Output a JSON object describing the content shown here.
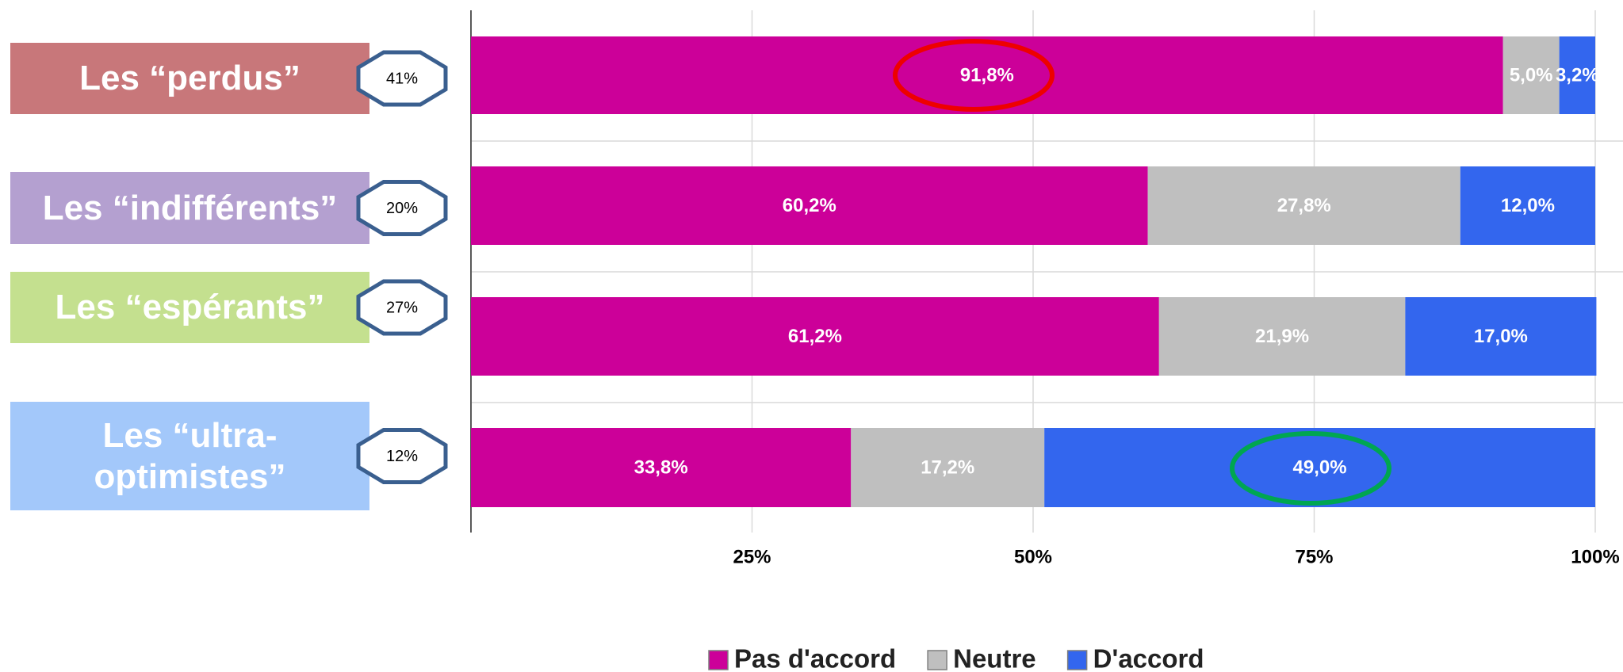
{
  "chart_data": {
    "type": "bar",
    "orientation": "horizontal",
    "stacked": true,
    "categories": [
      "Les “perdus”",
      "Les “indifférents”",
      "Les “espérants”",
      "Les “ultra-optimistes”"
    ],
    "category_colors": [
      "#c8777a",
      "#b4a0d0",
      "#c4e08f",
      "#a3c8fa"
    ],
    "shares": {
      "values": [
        41,
        20,
        27,
        12
      ],
      "value_labels": [
        "41%",
        "20%",
        "27%",
        "12%"
      ]
    },
    "series": [
      {
        "name": "Pas d'accord",
        "color": "#cc0099",
        "values": [
          91.8,
          60.2,
          61.2,
          33.8
        ],
        "value_labels": [
          "91,8%",
          "60,2%",
          "61,2%",
          "33,8%"
        ]
      },
      {
        "name": "Neutre",
        "color": "#bfbfbf",
        "values": [
          5.0,
          27.8,
          21.9,
          17.2
        ],
        "value_labels": [
          "5,0%",
          "27,8%",
          "21,9%",
          "17,2%"
        ]
      },
      {
        "name": "D'accord",
        "color": "#3366ee",
        "values": [
          3.2,
          12.0,
          17.0,
          49.0
        ],
        "value_labels": [
          "3,2%",
          "12,0%",
          "17,0%",
          "49,0%"
        ]
      }
    ],
    "xlim": [
      0,
      100
    ],
    "xticks": [
      {
        "value": 25,
        "label": "25%"
      },
      {
        "value": 50,
        "label": "50%"
      },
      {
        "value": 75,
        "label": "75%"
      },
      {
        "value": 100,
        "label": "100%"
      }
    ],
    "grid": true,
    "legend": "bottom"
  }
}
